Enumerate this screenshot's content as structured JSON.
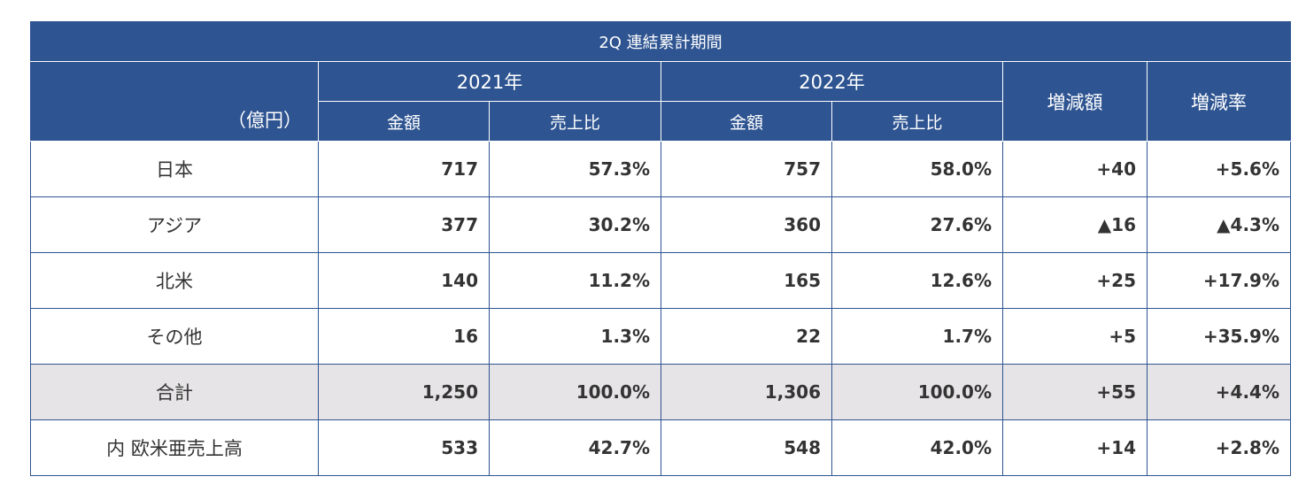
{
  "table": {
    "title": "2Q  連結累計期間",
    "unit": "（億円）",
    "year1": "2021年",
    "year2": "2022年",
    "change_amount": "増減額",
    "change_rate": "増減率",
    "amount": "金額",
    "share": "売上比",
    "rows": [
      {
        "label": "日本",
        "a1": "717",
        "s1": "57.3%",
        "a2": "757",
        "s2": "58.0%",
        "d": "+40",
        "r": "+5.6%"
      },
      {
        "label": "アジア",
        "a1": "377",
        "s1": "30.2%",
        "a2": "360",
        "s2": "27.6%",
        "d": "▲16",
        "r": "▲4.3%"
      },
      {
        "label": "北米",
        "a1": "140",
        "s1": "11.2%",
        "a2": "165",
        "s2": "12.6%",
        "d": "+25",
        "r": "+17.9%"
      },
      {
        "label": "その他",
        "a1": "16",
        "s1": "1.3%",
        "a2": "22",
        "s2": "1.7%",
        "d": "+5",
        "r": "+35.9%"
      },
      {
        "label": "合計",
        "a1": "1,250",
        "s1": "100.0%",
        "a2": "1,306",
        "s2": "100.0%",
        "d": "+55",
        "r": "+4.4%"
      },
      {
        "label": "内 欧米亜売上高",
        "a1": "533",
        "s1": "42.7%",
        "a2": "548",
        "s2": "42.0%",
        "d": "+14",
        "r": "+2.8%"
      }
    ]
  },
  "colors": {
    "header_bg": "#2e5491",
    "total_row_bg": "#e6e4e6",
    "text": "#333333"
  }
}
